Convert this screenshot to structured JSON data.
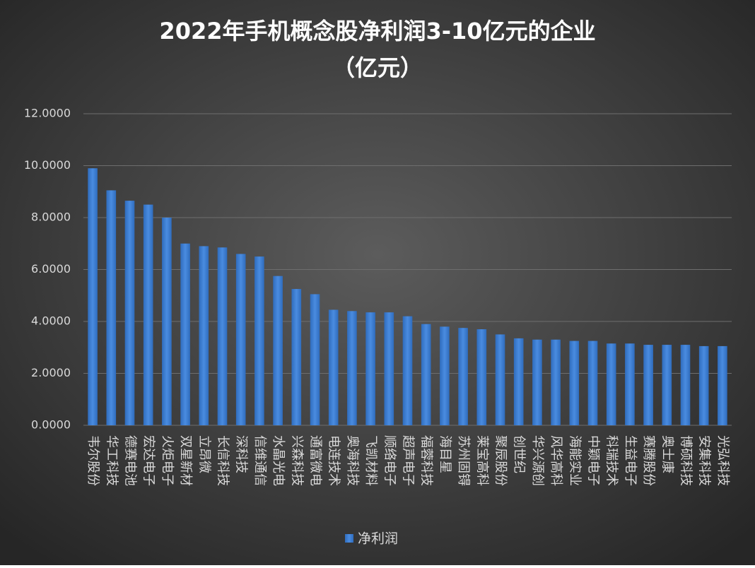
{
  "chart_data": {
    "type": "bar",
    "title": "2022年手机概念股净利润3-10亿元的企业",
    "subtitle": "（亿元）",
    "categories": [
      "韦尔股份",
      "华工科技",
      "德赛电池",
      "宏达电子",
      "火炬电子",
      "双星新材",
      "立昂微",
      "长信科技",
      "深科技",
      "信维通信",
      "水晶光电",
      "兴森科技",
      "通富微电",
      "电连技术",
      "奥海科技",
      "飞凯材料",
      "顺络电子",
      "超声电子",
      "福蓉科技",
      "海目星",
      "苏州固锝",
      "莱宝高科",
      "聚辰股份",
      "创世纪",
      "华兴源创",
      "风华高科",
      "海能实业",
      "中颖电子",
      "科瑞技术",
      "生益电子",
      "赛腾股份",
      "奥士康",
      "博硕科技",
      "安集科技",
      "光弘科技"
    ],
    "series": [
      {
        "name": "净利润",
        "color": "#3b7dd0",
        "values": [
          9.9,
          9.05,
          8.65,
          8.5,
          8.0,
          7.0,
          6.9,
          6.85,
          6.6,
          6.5,
          5.75,
          5.25,
          5.05,
          4.45,
          4.4,
          4.35,
          4.35,
          4.2,
          3.9,
          3.8,
          3.75,
          3.7,
          3.5,
          3.35,
          3.3,
          3.3,
          3.25,
          3.25,
          3.15,
          3.15,
          3.1,
          3.1,
          3.1,
          3.05,
          3.05
        ]
      }
    ],
    "ylim": [
      0,
      12
    ],
    "yticks": [
      {
        "value": 0,
        "label": "0.0000"
      },
      {
        "value": 2,
        "label": "2.0000"
      },
      {
        "value": 4,
        "label": "4.0000"
      },
      {
        "value": 6,
        "label": "6.0000"
      },
      {
        "value": 8,
        "label": "8.0000"
      },
      {
        "value": 10,
        "label": "10.0000"
      },
      {
        "value": 12,
        "label": "12.0000"
      }
    ],
    "grid": true
  }
}
